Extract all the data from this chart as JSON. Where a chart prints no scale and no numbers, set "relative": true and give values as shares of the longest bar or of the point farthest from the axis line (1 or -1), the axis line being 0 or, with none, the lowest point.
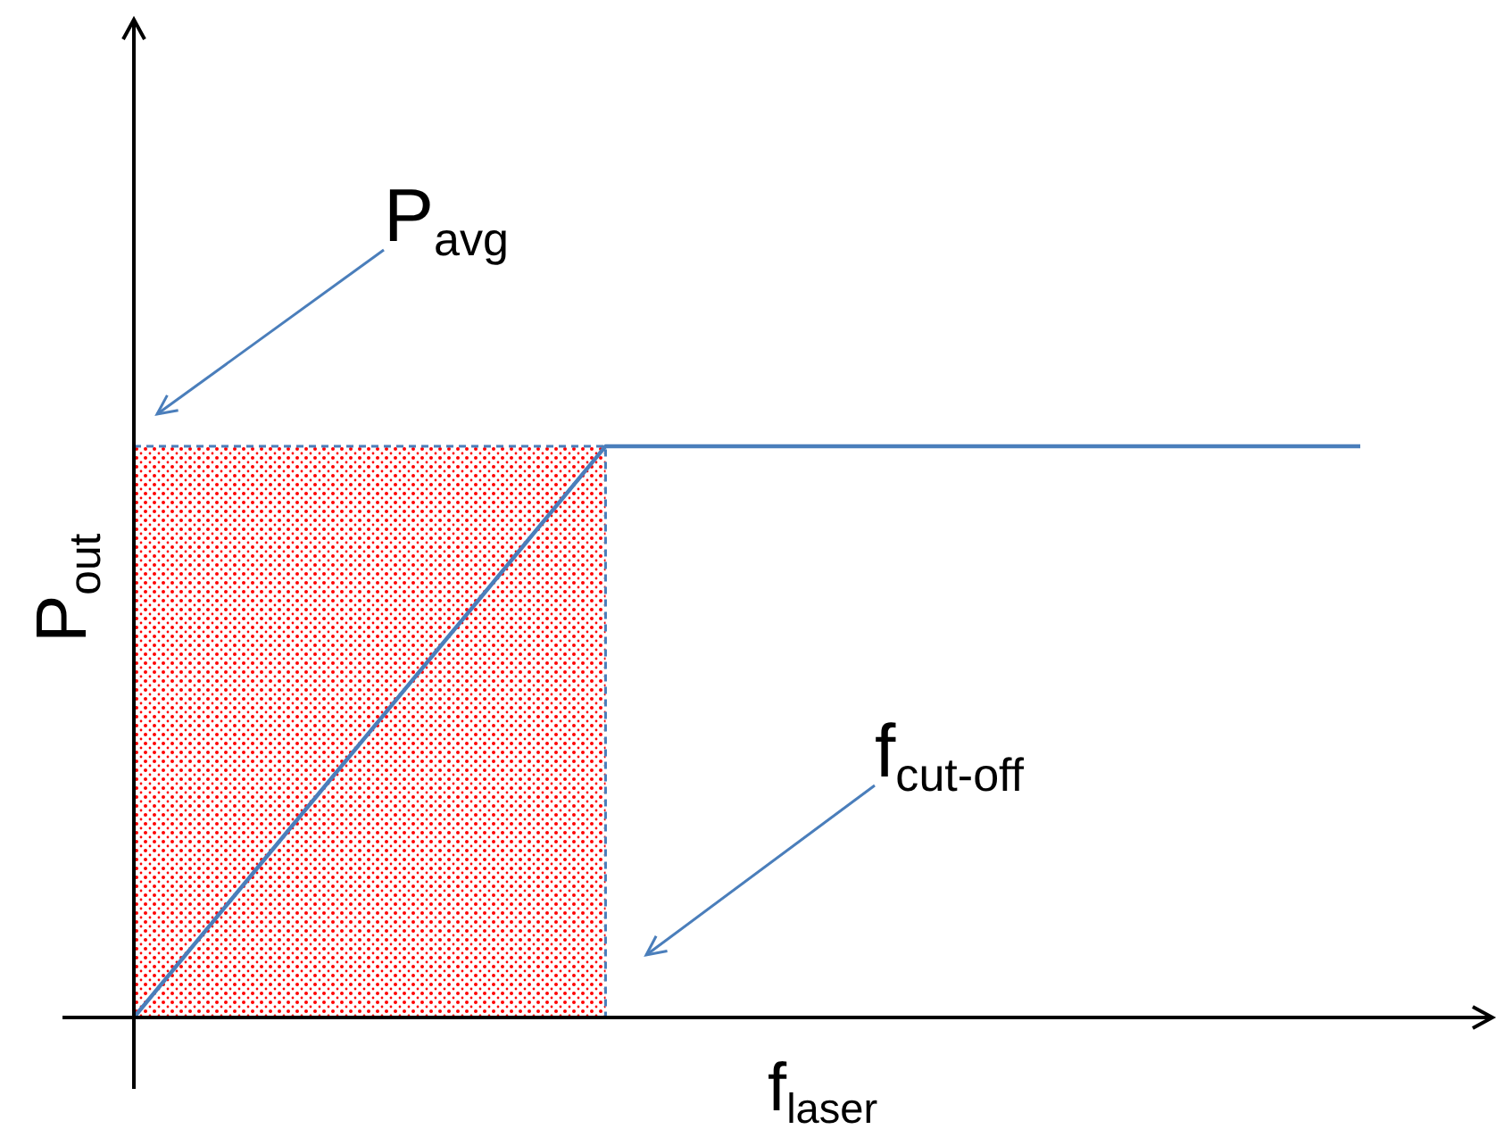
{
  "chart_data": {
    "type": "line",
    "relative": true,
    "xlabel": "f$_{laser}$",
    "ylabel": "P$_{out}$",
    "categories": [
      null,
      null,
      null,
      null,
      null,
      null,
      null,
      null,
      null,
      null,
      null,
      null,
      null,
      null
    ],
    "series": [
      {
        "type": "area",
        "color": "#ff0000",
        "values": [
          1,
          1,
          1,
          1,
          1,
          1,
          null,
          null,
          null,
          null,
          null,
          null,
          null,
          null
        ]
      },
      {
        "color": "#4a7ebb",
        "values": [
          0,
          0.2,
          0.4,
          0.6,
          0.8,
          1,
          1,
          1,
          1,
          1,
          1,
          1,
          1,
          1
        ]
      }
    ],
    "annotations": [
      "P$_{avg}$",
      "f$_{cut-off}$"
    ]
  }
}
